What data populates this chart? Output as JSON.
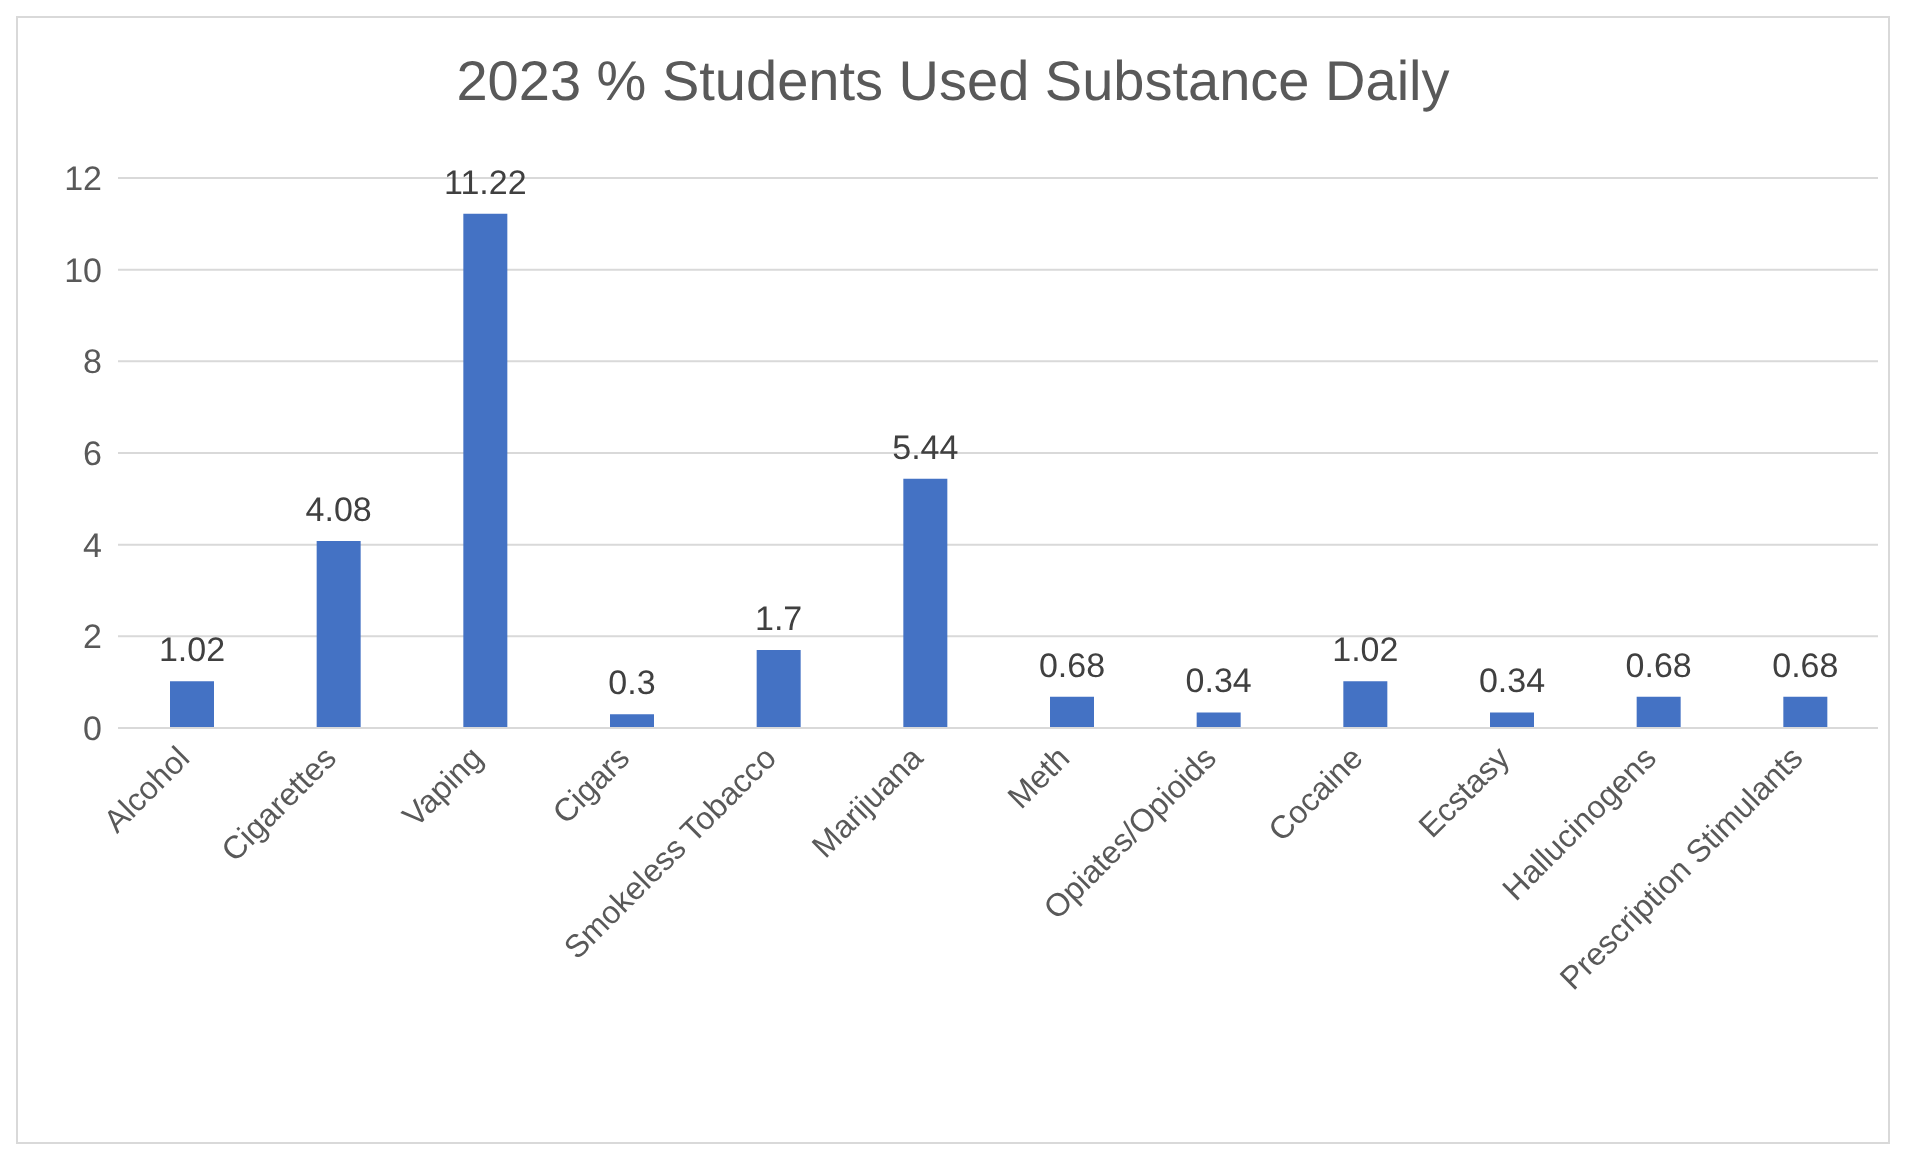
{
  "chart_data": {
    "type": "bar",
    "title": "2023 % Students Used Substance Daily",
    "categories": [
      "Alcohol",
      "Cigarettes",
      "Vaping",
      "Cigars",
      "Smokeless Tobacco",
      "Marijuana",
      "Meth",
      "Opiates/Opioids",
      "Cocaine",
      "Ecstasy",
      "Hallucinogens",
      "Prescription Stimulants"
    ],
    "values": [
      1.02,
      4.08,
      11.22,
      0.3,
      1.7,
      5.44,
      0.68,
      0.34,
      1.02,
      0.34,
      0.68,
      0.68
    ],
    "color": "#4472c4",
    "ylim": [
      0,
      12
    ],
    "yticks": [
      0,
      2,
      4,
      6,
      8,
      10,
      12
    ],
    "grid": "y",
    "data_labels": true,
    "legend": false
  }
}
